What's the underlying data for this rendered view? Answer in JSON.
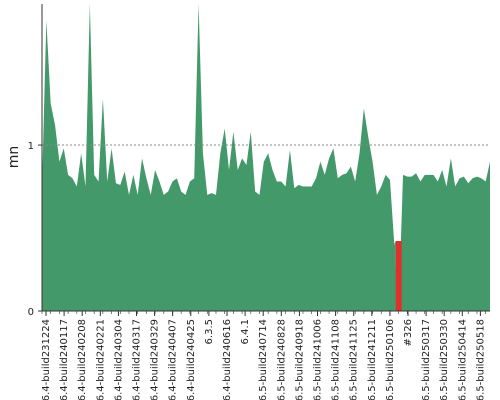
{
  "chart_data": {
    "type": "area",
    "ylabel": "mn",
    "ylim": [
      0,
      1.85
    ],
    "yticks": [
      0,
      1
    ],
    "reference_line": 1,
    "grid": false,
    "colors": {
      "area": "#44996a",
      "anomaly": "#e0302c",
      "reference": "#888888",
      "axis": "#333333"
    },
    "x_tick_labels": [
      "6.4-build231224",
      "6.4-build240117",
      "6.4-build240208",
      "6.4-build240221",
      "6.4-build240304",
      "6.4-build240317",
      "6.4-build240329",
      "6.4-build240407",
      "6.4-build240425",
      "6.3.5",
      "6.4-build240616",
      "6.4.1",
      "6.5-build240714",
      "6.5-build240828",
      "6.5-build240918",
      "6.5-build241006",
      "6.5-build241108",
      "6.5-build241125",
      "6.5-build241211",
      "6.5-build250106",
      "#326",
      "6.5-build250317",
      "6.5-build250330",
      "6.5-build250414",
      "6.5-build250518"
    ],
    "values": [
      0.75,
      1.75,
      1.25,
      1.12,
      0.9,
      0.98,
      0.82,
      0.8,
      0.75,
      0.95,
      0.75,
      1.85,
      0.82,
      0.78,
      1.28,
      0.78,
      0.98,
      0.77,
      0.76,
      0.84,
      0.7,
      0.82,
      0.7,
      0.92,
      0.8,
      0.7,
      0.85,
      0.78,
      0.7,
      0.72,
      0.78,
      0.8,
      0.72,
      0.7,
      0.78,
      0.8,
      1.85,
      0.95,
      0.7,
      0.71,
      0.7,
      0.95,
      1.1,
      0.85,
      1.08,
      0.85,
      0.92,
      0.88,
      1.08,
      0.72,
      0.7,
      0.9,
      0.95,
      0.85,
      0.78,
      0.78,
      0.75,
      0.97,
      0.74,
      0.76,
      0.75,
      0.75,
      0.75,
      0.8,
      0.9,
      0.82,
      0.92,
      0.98,
      0.8,
      0.82,
      0.83,
      0.87,
      0.78,
      0.95,
      1.22,
      1.05,
      0.9,
      0.7,
      0.75,
      0.82,
      0.79,
      0.4,
      0.0,
      0.82,
      0.81,
      0.81,
      0.83,
      0.78,
      0.82,
      0.82,
      0.82,
      0.78,
      0.85,
      0.75,
      0.92,
      0.75,
      0.8,
      0.81,
      0.77,
      0.8,
      0.81,
      0.8,
      0.78,
      0.9
    ],
    "anomaly_index": 82
  }
}
